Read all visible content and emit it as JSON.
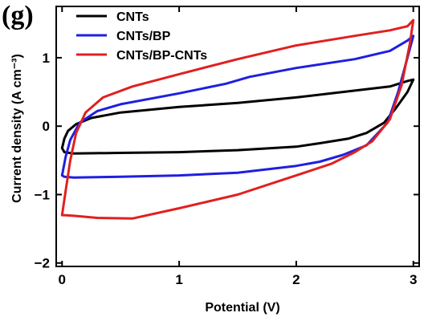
{
  "panel_label": "(g)",
  "chart_data": {
    "type": "line",
    "title": "",
    "xlabel": "Potential (V)",
    "ylabel": "Current density (A cm⁻³)",
    "xlim": [
      -0.05,
      3.05
    ],
    "ylim": [
      -2.05,
      1.75
    ],
    "xticks": [
      0,
      1,
      2,
      3
    ],
    "yticks": [
      -2,
      -1,
      0,
      1
    ],
    "grid": false,
    "legend_position": "top-left",
    "series": [
      {
        "name": "CNTs",
        "color": "#000000",
        "points": [
          [
            0.0,
            -0.32
          ],
          [
            0.02,
            -0.18
          ],
          [
            0.05,
            -0.07
          ],
          [
            0.12,
            0.03
          ],
          [
            0.25,
            0.12
          ],
          [
            0.5,
            0.2
          ],
          [
            1.0,
            0.28
          ],
          [
            1.5,
            0.34
          ],
          [
            2.0,
            0.42
          ],
          [
            2.5,
            0.52
          ],
          [
            2.8,
            0.58
          ],
          [
            2.95,
            0.66
          ],
          [
            3.0,
            0.68
          ],
          [
            2.95,
            0.5
          ],
          [
            2.85,
            0.26
          ],
          [
            2.75,
            0.05
          ],
          [
            2.6,
            -0.1
          ],
          [
            2.45,
            -0.18
          ],
          [
            2.2,
            -0.25
          ],
          [
            2.0,
            -0.3
          ],
          [
            1.5,
            -0.35
          ],
          [
            1.0,
            -0.38
          ],
          [
            0.5,
            -0.39
          ],
          [
            0.1,
            -0.4
          ],
          [
            0.02,
            -0.38
          ],
          [
            0.0,
            -0.32
          ]
        ]
      },
      {
        "name": "CNTs/BP",
        "color": "#1f1fe0",
        "points": [
          [
            0.0,
            -0.72
          ],
          [
            0.03,
            -0.45
          ],
          [
            0.07,
            -0.2
          ],
          [
            0.15,
            0.05
          ],
          [
            0.3,
            0.22
          ],
          [
            0.5,
            0.32
          ],
          [
            1.0,
            0.48
          ],
          [
            1.4,
            0.62
          ],
          [
            1.6,
            0.72
          ],
          [
            2.0,
            0.85
          ],
          [
            2.5,
            0.98
          ],
          [
            2.8,
            1.1
          ],
          [
            2.95,
            1.25
          ],
          [
            3.0,
            1.32
          ],
          [
            2.95,
            1.0
          ],
          [
            2.87,
            0.5
          ],
          [
            2.78,
            0.05
          ],
          [
            2.6,
            -0.28
          ],
          [
            2.4,
            -0.42
          ],
          [
            2.2,
            -0.52
          ],
          [
            2.0,
            -0.58
          ],
          [
            1.5,
            -0.68
          ],
          [
            1.0,
            -0.72
          ],
          [
            0.5,
            -0.74
          ],
          [
            0.1,
            -0.75
          ],
          [
            0.02,
            -0.74
          ],
          [
            0.0,
            -0.72
          ]
        ]
      },
      {
        "name": "CNTs/BP-CNTs",
        "color": "#e02020",
        "points": [
          [
            0.0,
            -1.3
          ],
          [
            0.03,
            -0.95
          ],
          [
            0.07,
            -0.5
          ],
          [
            0.12,
            -0.1
          ],
          [
            0.2,
            0.2
          ],
          [
            0.35,
            0.42
          ],
          [
            0.6,
            0.58
          ],
          [
            1.0,
            0.76
          ],
          [
            1.5,
            0.98
          ],
          [
            2.0,
            1.18
          ],
          [
            2.5,
            1.32
          ],
          [
            2.8,
            1.4
          ],
          [
            2.95,
            1.46
          ],
          [
            3.0,
            1.55
          ],
          [
            2.97,
            1.2
          ],
          [
            2.9,
            0.6
          ],
          [
            2.8,
            0.1
          ],
          [
            2.65,
            -0.22
          ],
          [
            2.5,
            -0.38
          ],
          [
            2.3,
            -0.55
          ],
          [
            2.0,
            -0.72
          ],
          [
            1.5,
            -1.0
          ],
          [
            1.0,
            -1.2
          ],
          [
            0.6,
            -1.35
          ],
          [
            0.3,
            -1.34
          ],
          [
            0.1,
            -1.31
          ],
          [
            0.02,
            -1.3
          ],
          [
            0.0,
            -1.3
          ]
        ]
      }
    ]
  }
}
